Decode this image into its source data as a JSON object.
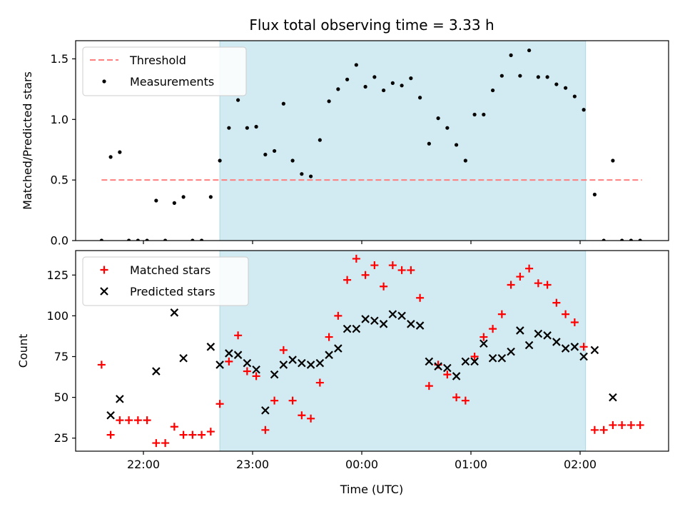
{
  "chart_data": {
    "type": "scatter",
    "title": "Flux total observing time = 3.33 h",
    "xlabel": "Time (UTC)",
    "x_ticks": [
      "22:00",
      "23:00",
      "00:00",
      "01:00",
      "02:00"
    ],
    "shaded_interval": [
      "22:42",
      "02:03"
    ],
    "colors": {
      "shade": "#add8e6",
      "threshold": "#ff7f7f",
      "measurements": "#000000",
      "matched": "#ff0000",
      "predicted": "#000000"
    },
    "panels": [
      {
        "id": "ratio",
        "ylabel": "Matched/Predicted stars",
        "ylim": [
          0,
          1.65
        ],
        "y_ticks": [
          "0.0",
          "0.5",
          "1.0",
          "1.5"
        ],
        "legend_position": "upper-left",
        "threshold": {
          "name": "Threshold",
          "value": 0.5,
          "x_range": [
            "21:37",
            "02:34"
          ]
        },
        "series": [
          {
            "name": "Measurements",
            "marker": "dot",
            "points": [
              [
                "21:37",
                0.0
              ],
              [
                "21:42",
                0.69
              ],
              [
                "21:47",
                0.73
              ],
              [
                "21:52",
                0.0
              ],
              [
                "21:57",
                0.0
              ],
              [
                "22:02",
                0.0
              ],
              [
                "22:07",
                0.33
              ],
              [
                "22:12",
                0.0
              ],
              [
                "22:17",
                0.31
              ],
              [
                "22:22",
                0.36
              ],
              [
                "22:27",
                0.0
              ],
              [
                "22:32",
                0.0
              ],
              [
                "22:37",
                0.36
              ],
              [
                "22:42",
                0.66
              ],
              [
                "22:47",
                0.93
              ],
              [
                "22:52",
                1.16
              ],
              [
                "22:57",
                0.93
              ],
              [
                "23:02",
                0.94
              ],
              [
                "23:07",
                0.71
              ],
              [
                "23:12",
                0.74
              ],
              [
                "23:17",
                1.13
              ],
              [
                "23:22",
                0.66
              ],
              [
                "23:27",
                0.55
              ],
              [
                "23:32",
                0.53
              ],
              [
                "23:37",
                0.83
              ],
              [
                "23:42",
                1.15
              ],
              [
                "23:47",
                1.25
              ],
              [
                "23:52",
                1.33
              ],
              [
                "23:57",
                1.45
              ],
              [
                "00:02",
                1.27
              ],
              [
                "00:07",
                1.35
              ],
              [
                "00:12",
                1.24
              ],
              [
                "00:17",
                1.3
              ],
              [
                "00:22",
                1.28
              ],
              [
                "00:27",
                1.34
              ],
              [
                "00:32",
                1.18
              ],
              [
                "00:37",
                0.8
              ],
              [
                "00:42",
                1.01
              ],
              [
                "00:47",
                0.93
              ],
              [
                "00:52",
                0.79
              ],
              [
                "00:57",
                0.66
              ],
              [
                "01:02",
                1.04
              ],
              [
                "01:07",
                1.04
              ],
              [
                "01:12",
                1.24
              ],
              [
                "01:17",
                1.36
              ],
              [
                "01:22",
                1.53
              ],
              [
                "01:27",
                1.36
              ],
              [
                "01:32",
                1.57
              ],
              [
                "01:37",
                1.35
              ],
              [
                "01:42",
                1.35
              ],
              [
                "01:47",
                1.29
              ],
              [
                "01:52",
                1.26
              ],
              [
                "01:57",
                1.19
              ],
              [
                "02:02",
                1.08
              ],
              [
                "02:08",
                0.38
              ],
              [
                "02:13",
                0.0
              ],
              [
                "02:18",
                0.66
              ],
              [
                "02:23",
                0.0
              ],
              [
                "02:28",
                0.0
              ],
              [
                "02:33",
                0.0
              ]
            ]
          }
        ]
      },
      {
        "id": "counts",
        "ylabel": "Count",
        "ylim": [
          17,
          140
        ],
        "y_ticks": [
          "25",
          "50",
          "75",
          "100",
          "125"
        ],
        "legend_position": "upper-left",
        "series": [
          {
            "name": "Matched stars",
            "marker": "plus",
            "points": [
              [
                "21:37",
                70
              ],
              [
                "21:42",
                27
              ],
              [
                "21:47",
                36
              ],
              [
                "21:52",
                36
              ],
              [
                "21:57",
                36
              ],
              [
                "22:02",
                36
              ],
              [
                "22:07",
                22
              ],
              [
                "22:12",
                22
              ],
              [
                "22:17",
                32
              ],
              [
                "22:22",
                27
              ],
              [
                "22:27",
                27
              ],
              [
                "22:32",
                27
              ],
              [
                "22:37",
                29
              ],
              [
                "22:42",
                46
              ],
              [
                "22:47",
                72
              ],
              [
                "22:52",
                88
              ],
              [
                "22:57",
                66
              ],
              [
                "23:02",
                63
              ],
              [
                "23:07",
                30
              ],
              [
                "23:12",
                48
              ],
              [
                "23:17",
                79
              ],
              [
                "23:22",
                48
              ],
              [
                "23:27",
                39
              ],
              [
                "23:32",
                37
              ],
              [
                "23:37",
                59
              ],
              [
                "23:42",
                87
              ],
              [
                "23:47",
                100
              ],
              [
                "23:52",
                122
              ],
              [
                "23:57",
                135
              ],
              [
                "00:02",
                125
              ],
              [
                "00:07",
                131
              ],
              [
                "00:12",
                118
              ],
              [
                "00:17",
                131
              ],
              [
                "00:22",
                128
              ],
              [
                "00:27",
                128
              ],
              [
                "00:32",
                111
              ],
              [
                "00:37",
                57
              ],
              [
                "00:42",
                70
              ],
              [
                "00:47",
                64
              ],
              [
                "00:52",
                50
              ],
              [
                "00:57",
                48
              ],
              [
                "01:02",
                75
              ],
              [
                "01:07",
                87
              ],
              [
                "01:12",
                92
              ],
              [
                "01:17",
                101
              ],
              [
                "01:22",
                119
              ],
              [
                "01:27",
                124
              ],
              [
                "01:32",
                129
              ],
              [
                "01:37",
                120
              ],
              [
                "01:42",
                119
              ],
              [
                "01:47",
                108
              ],
              [
                "01:52",
                101
              ],
              [
                "01:57",
                96
              ],
              [
                "02:02",
                81
              ],
              [
                "02:08",
                30
              ],
              [
                "02:13",
                30
              ],
              [
                "02:18",
                33
              ],
              [
                "02:23",
                33
              ],
              [
                "02:28",
                33
              ],
              [
                "02:33",
                33
              ]
            ]
          },
          {
            "name": "Predicted stars",
            "marker": "x",
            "points": [
              [
                "21:42",
                39
              ],
              [
                "21:47",
                49
              ],
              [
                "22:07",
                66
              ],
              [
                "22:17",
                102
              ],
              [
                "22:22",
                74
              ],
              [
                "22:37",
                81
              ],
              [
                "22:42",
                70
              ],
              [
                "22:47",
                77
              ],
              [
                "22:52",
                76
              ],
              [
                "22:57",
                71
              ],
              [
                "23:02",
                67
              ],
              [
                "23:07",
                42
              ],
              [
                "23:12",
                64
              ],
              [
                "23:17",
                70
              ],
              [
                "23:22",
                73
              ],
              [
                "23:27",
                71
              ],
              [
                "23:32",
                70
              ],
              [
                "23:37",
                71
              ],
              [
                "23:42",
                76
              ],
              [
                "23:47",
                80
              ],
              [
                "23:52",
                92
              ],
              [
                "23:57",
                92
              ],
              [
                "00:02",
                98
              ],
              [
                "00:07",
                97
              ],
              [
                "00:12",
                95
              ],
              [
                "00:17",
                101
              ],
              [
                "00:22",
                100
              ],
              [
                "00:27",
                95
              ],
              [
                "00:32",
                94
              ],
              [
                "00:37",
                72
              ],
              [
                "00:42",
                69
              ],
              [
                "00:47",
                68
              ],
              [
                "00:52",
                63
              ],
              [
                "00:57",
                72
              ],
              [
                "01:02",
                72
              ],
              [
                "01:07",
                83
              ],
              [
                "01:12",
                74
              ],
              [
                "01:17",
                74
              ],
              [
                "01:22",
                78
              ],
              [
                "01:27",
                91
              ],
              [
                "01:32",
                82
              ],
              [
                "01:37",
                89
              ],
              [
                "01:42",
                88
              ],
              [
                "01:47",
                84
              ],
              [
                "01:52",
                80
              ],
              [
                "01:57",
                81
              ],
              [
                "02:02",
                75
              ],
              [
                "02:08",
                79
              ],
              [
                "02:18",
                50
              ]
            ]
          }
        ]
      }
    ]
  }
}
